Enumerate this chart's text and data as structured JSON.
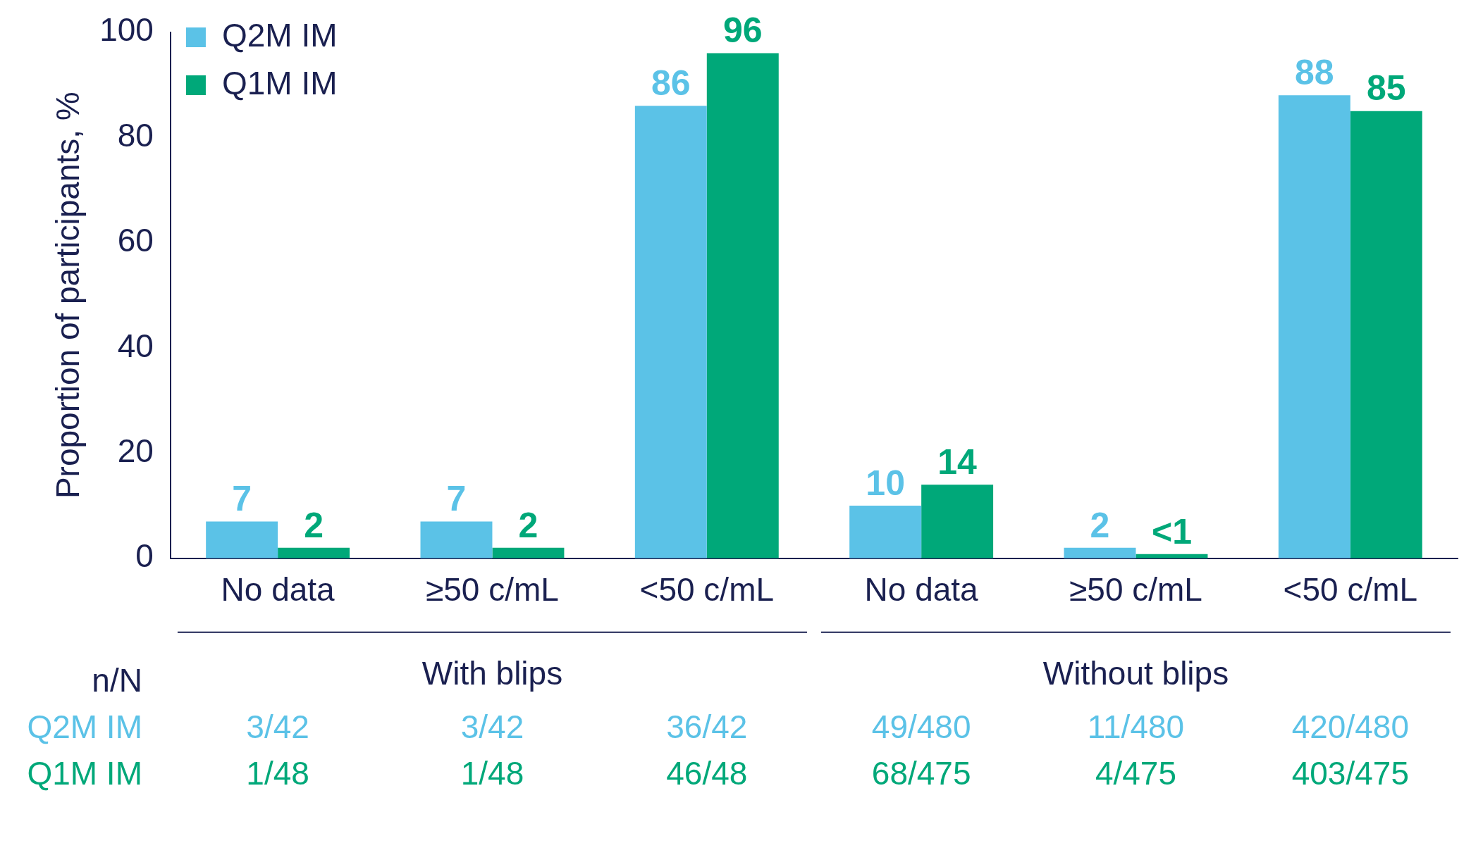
{
  "chart_data": {
    "type": "bar",
    "ylabel": "Proportion of participants, %",
    "categories": [
      "No data",
      "≥50 c/mL",
      "<50 c/mL",
      "No data",
      "≥50 c/mL",
      "<50 c/mL"
    ],
    "series": [
      {
        "name": "Q2M IM",
        "color": "#5bc2e7",
        "values": [
          7,
          7,
          86,
          10,
          2,
          88
        ],
        "value_labels": [
          "7",
          "7",
          "86",
          "10",
          "2",
          "88"
        ]
      },
      {
        "name": "Q1M IM",
        "color": "#00a879",
        "values": [
          2,
          2,
          96,
          14,
          0.8,
          85
        ],
        "value_labels": [
          "2",
          "2",
          "96",
          "14",
          "<1",
          "85"
        ]
      }
    ],
    "ylim": [
      0,
      100
    ],
    "yticks": [
      0,
      20,
      40,
      60,
      80,
      100
    ],
    "legend": "top left",
    "annotations": [
      "With blips",
      "Without blips",
      "n/N",
      "3/42",
      "3/42",
      "36/42",
      "49/480",
      "11/480",
      "420/480",
      "1/48",
      "1/48",
      "46/48",
      "68/475",
      "4/475",
      "403/475"
    ]
  }
}
